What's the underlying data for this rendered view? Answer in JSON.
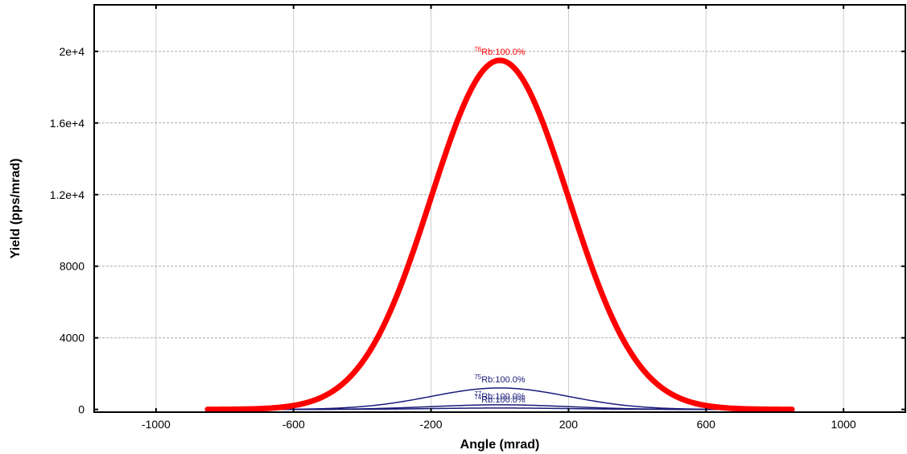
{
  "chart_data": {
    "type": "line",
    "xlabel": "Angle (mrad)",
    "ylabel": "Yield (pps/mrad)",
    "xlim": [
      -1180,
      1180
    ],
    "ylim": [
      -150,
      22600
    ],
    "x_ticks": [
      -1000,
      -600,
      -200,
      200,
      600,
      1000
    ],
    "x_tick_labels": [
      "-1000",
      "-600",
      "-200",
      "200",
      "600",
      "1000"
    ],
    "y_ticks": [
      0,
      4000,
      8000,
      12000,
      16000,
      20000
    ],
    "y_tick_labels": [
      "0",
      "4000",
      "8000",
      "1.2e+4",
      "1.6e+4",
      "2e+4"
    ],
    "grid": true,
    "x_range_drawn": [
      -850,
      850
    ],
    "series": [
      {
        "name": "75Rb",
        "label_sup": "75",
        "label_text": "Rb:100.0%",
        "peak": 1200,
        "center": 0,
        "sigma": 200,
        "color": "#1a1a7a",
        "line_width": 1.5
      },
      {
        "name": "77Rb",
        "label_sup": "77",
        "label_text": "Rb:100.0%",
        "peak": 260,
        "center": 0,
        "sigma": 200,
        "color": "#1a1a7a",
        "line_width": 1.5
      },
      {
        "name": "74Rb",
        "label_sup": "74",
        "label_text": "Rb:100.0%",
        "peak": 80,
        "center": 0,
        "sigma": 200,
        "color": "#1a1a7a",
        "line_width": 1.5
      },
      {
        "name": "76Rb",
        "label_sup": "76",
        "label_text": "Rb:100.0%",
        "peak": 19500,
        "center": 0,
        "sigma": 200,
        "color": "#ff0000",
        "line_width": 7
      }
    ]
  }
}
